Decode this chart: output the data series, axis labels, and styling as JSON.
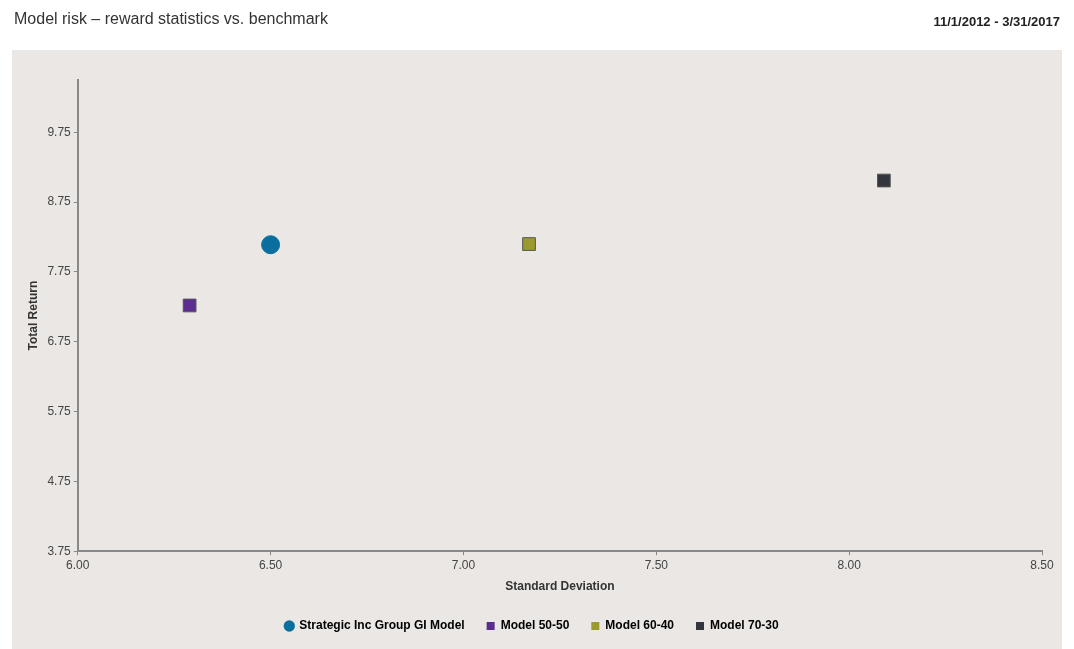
{
  "chart_data": {
    "type": "scatter",
    "title": "Model risk – reward statistics vs. benchmark",
    "subtitle": "11/1/2012 - 3/31/2017",
    "xlabel": "Standard Deviation",
    "ylabel": "Total Return",
    "xlim": [
      6,
      8.5
    ],
    "xticks": [
      {
        "value": 6,
        "label": "6.00"
      },
      {
        "value": 6.5,
        "label": "6.50"
      },
      {
        "value": 7,
        "label": "7.00"
      },
      {
        "value": 7.5,
        "label": "7.50"
      },
      {
        "value": 8,
        "label": "8.00"
      },
      {
        "value": 8.5,
        "label": "8.50"
      }
    ],
    "ylim": [
      3.75,
      10.5
    ],
    "yticks": [
      3.75,
      4.75,
      5.75,
      6.75,
      7.75,
      8.75,
      9.75
    ],
    "grid": false,
    "legend": "bottom",
    "series": [
      {
        "name": "Strategic Inc Group GI Model",
        "color": "#0a6e9e",
        "marker": "circle",
        "x": [
          6.5
        ],
        "values": [
          8.14
        ]
      },
      {
        "name": "Model 50-50",
        "color": "#5b2d8e",
        "marker": "square",
        "x": [
          6.29
        ],
        "values": [
          7.27
        ]
      },
      {
        "name": "Model 60-40",
        "color": "#9a9a2e",
        "marker": "square",
        "x": [
          7.17
        ],
        "values": [
          8.15
        ]
      },
      {
        "name": "Model 70-30",
        "color": "#33363d",
        "marker": "square",
        "x": [
          8.09
        ],
        "values": [
          9.06
        ]
      }
    ]
  }
}
